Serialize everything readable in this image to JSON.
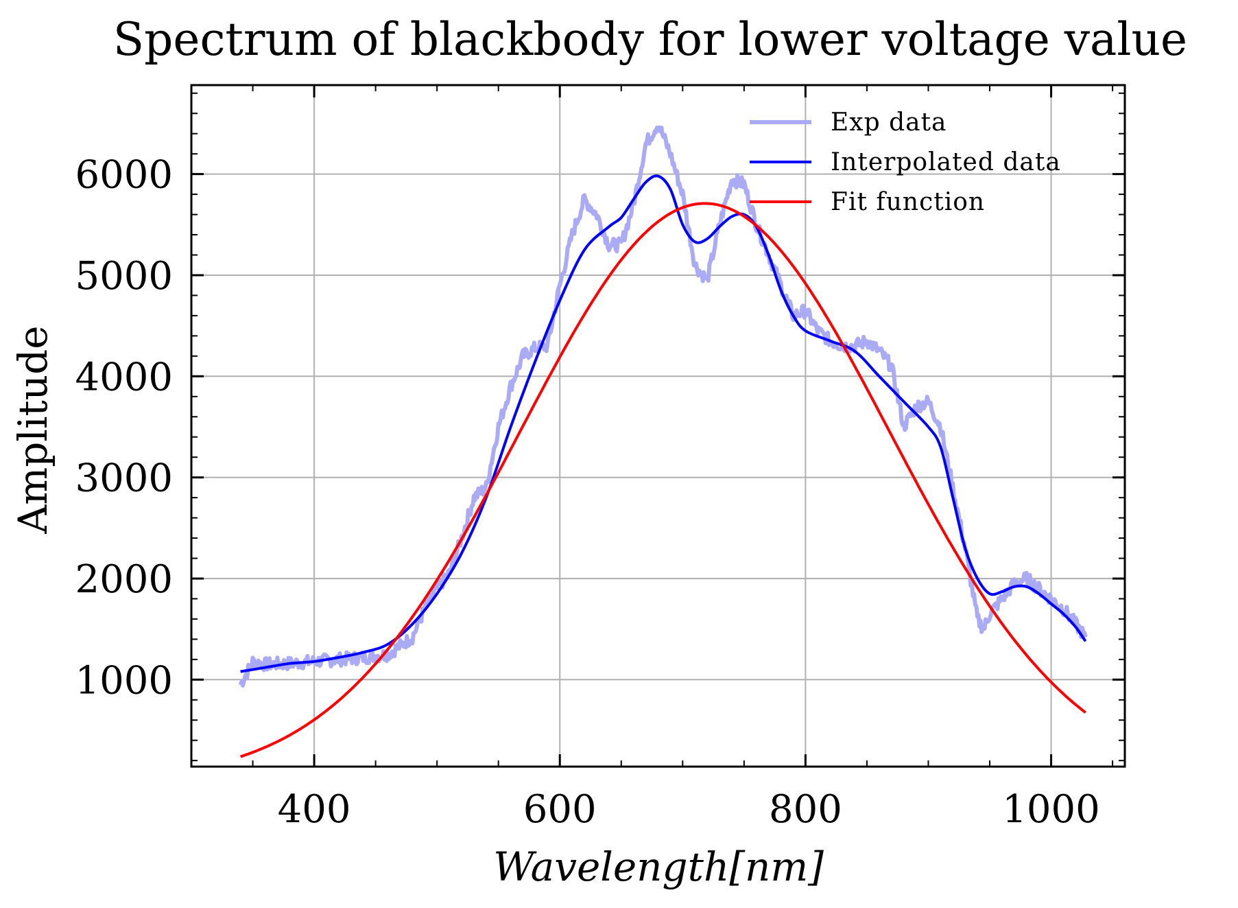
{
  "chart_data": {
    "type": "line",
    "title": "Spectrum of blackbody for lower voltage value",
    "xlabel": "Wavelength[nm]",
    "ylabel": "Amplitude",
    "xlim": [
      300,
      1060
    ],
    "ylim": [
      140,
      6880
    ],
    "x_ticks": [
      400,
      600,
      800,
      1000
    ],
    "y_ticks": [
      1000,
      2000,
      3000,
      4000,
      5000,
      6000
    ],
    "x_tick_labels": [
      "400",
      "600",
      "800",
      "1000"
    ],
    "y_tick_labels": [
      "1000",
      "2000",
      "3000",
      "4000",
      "5000",
      "6000"
    ],
    "grid": true,
    "legend_position": "top-right",
    "series": [
      {
        "name": "Exp data",
        "color": "#aaaaf5",
        "x": [
          340,
          350,
          360,
          380,
          400,
          420,
          440,
          460,
          480,
          490,
          500,
          510,
          520,
          530,
          540,
          550,
          560,
          570,
          580,
          590,
          600,
          610,
          620,
          630,
          640,
          650,
          660,
          670,
          680,
          690,
          700,
          710,
          720,
          730,
          740,
          750,
          760,
          770,
          780,
          790,
          800,
          810,
          820,
          830,
          840,
          850,
          860,
          870,
          880,
          890,
          900,
          910,
          920,
          930,
          940,
          945,
          950,
          960,
          970,
          980,
          990,
          1000,
          1010,
          1020,
          1028
        ],
        "y": [
          950,
          1180,
          1150,
          1160,
          1180,
          1200,
          1220,
          1250,
          1420,
          1700,
          1900,
          2050,
          2400,
          2800,
          2900,
          3500,
          3900,
          4200,
          4280,
          4300,
          4900,
          5400,
          5750,
          5600,
          5300,
          5300,
          5700,
          6300,
          6500,
          6200,
          5800,
          5100,
          4950,
          5500,
          5950,
          5900,
          5500,
          5200,
          4900,
          4600,
          4650,
          4450,
          4350,
          4300,
          4300,
          4350,
          4250,
          4100,
          3500,
          3700,
          3750,
          3500,
          2900,
          2300,
          1600,
          1500,
          1650,
          1800,
          1950,
          2000,
          1900,
          1800,
          1700,
          1550,
          1420
        ]
      },
      {
        "name": "Interpolated data",
        "color": "#0000ff",
        "x": [
          340,
          360,
          380,
          400,
          420,
          440,
          460,
          480,
          500,
          520,
          540,
          560,
          580,
          600,
          620,
          640,
          650,
          660,
          670,
          680,
          690,
          700,
          710,
          720,
          730,
          740,
          750,
          760,
          770,
          780,
          790,
          800,
          820,
          840,
          860,
          880,
          900,
          910,
          920,
          930,
          940,
          950,
          960,
          970,
          980,
          990,
          1000,
          1010,
          1020,
          1028
        ],
        "y": [
          1080,
          1120,
          1160,
          1180,
          1220,
          1270,
          1350,
          1550,
          1850,
          2250,
          2800,
          3500,
          4150,
          4750,
          5250,
          5480,
          5570,
          5750,
          5920,
          5980,
          5850,
          5500,
          5330,
          5360,
          5480,
          5580,
          5600,
          5480,
          5200,
          4850,
          4600,
          4450,
          4350,
          4250,
          4000,
          3750,
          3500,
          3300,
          2800,
          2300,
          2000,
          1850,
          1870,
          1920,
          1920,
          1850,
          1750,
          1650,
          1520,
          1380
        ]
      },
      {
        "name": "Fit function",
        "color": "#ff0000",
        "model": "gaussian",
        "center": 718,
        "amplitude": 5710,
        "width_sigma": 150,
        "x_range": [
          340,
          1028
        ]
      }
    ]
  }
}
